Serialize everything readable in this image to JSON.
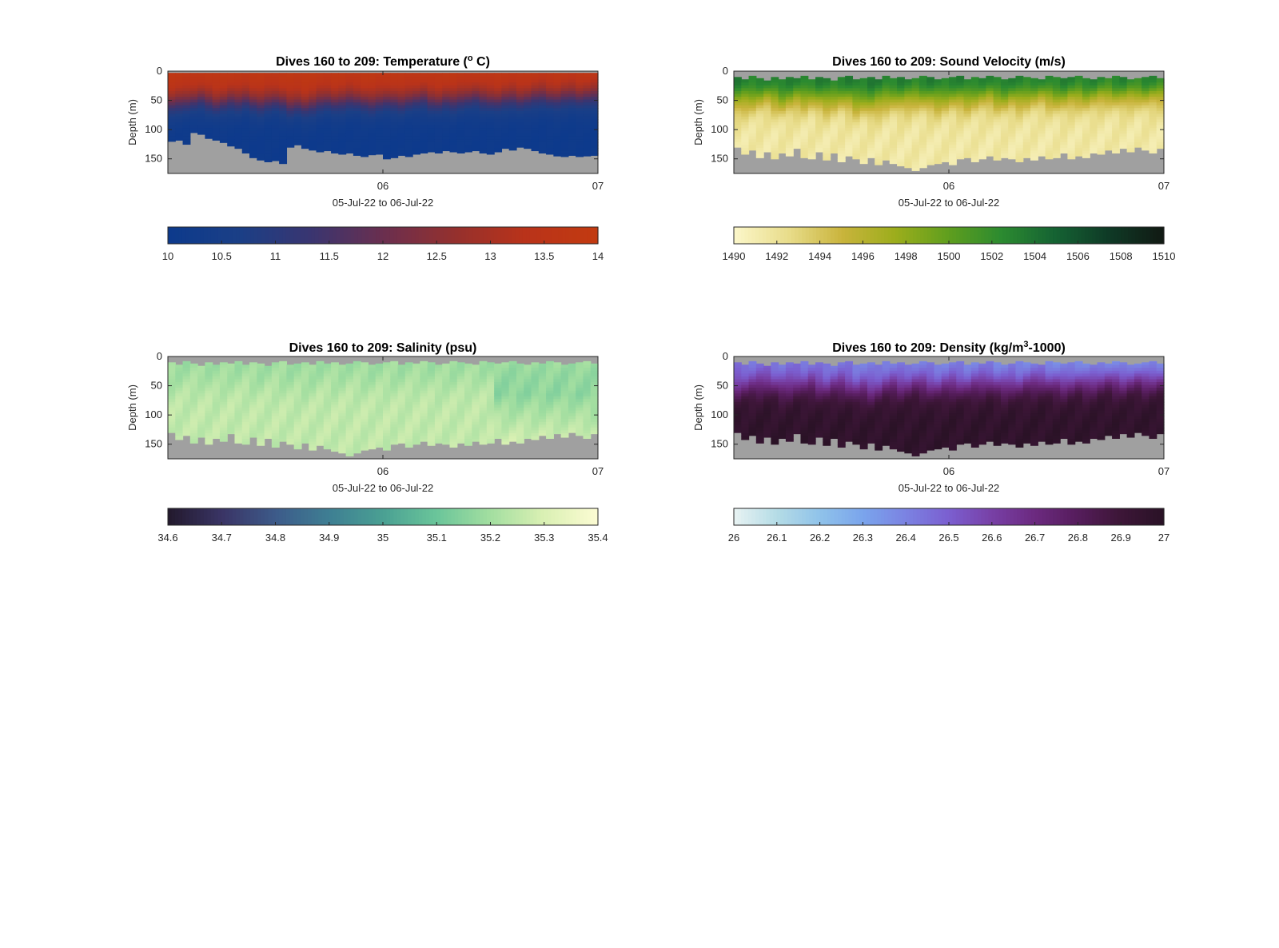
{
  "chart_data": [
    {
      "type": "heatmap",
      "title": "Dives 160 to 209: Temperature (",
      "title_sup": "o",
      "title_tail": " C)",
      "ylabel": "Depth (m)",
      "xlabel": "05-Jul-22 to 06-Jul-22",
      "x_ticks": [
        "06",
        "07"
      ],
      "x_tick_hours": [
        12,
        36
      ],
      "x_range_hours": [
        -12,
        36
      ],
      "y_ticks": [
        0,
        50,
        100,
        150
      ],
      "ylim": [
        0,
        175
      ],
      "y_reversed": true,
      "colorbar": {
        "ticks": [
          "10",
          "10.5",
          "11",
          "11.5",
          "12",
          "12.5",
          "13",
          "13.5",
          "14"
        ],
        "min": 10,
        "max": 14
      },
      "colormap": [
        "#0d3a8c",
        "#1b3f86",
        "#3a3570",
        "#6a2f4f",
        "#94302e",
        "#b9331a",
        "#c23a10"
      ],
      "nodata_color": "#a0a0a0",
      "field": "temperature",
      "profile_bottom_depth_m": [
        120,
        118,
        125,
        105,
        108,
        115,
        118,
        122,
        128,
        132,
        140,
        148,
        152,
        155,
        153,
        158,
        130,
        126,
        132,
        135,
        138,
        136,
        140,
        142,
        140,
        144,
        146,
        143,
        142,
        150,
        148,
        144,
        146,
        142,
        140,
        138,
        140,
        136,
        138,
        140,
        138,
        136,
        140,
        142,
        138,
        132,
        135,
        130,
        132,
        136,
        140,
        142,
        145,
        146,
        144,
        146,
        145,
        144
      ],
      "profile_top_depth_m": [
        3,
        3,
        3,
        3,
        3,
        3,
        3,
        3,
        3,
        3,
        3,
        3,
        3,
        3,
        3,
        3,
        3,
        3,
        3,
        3,
        3,
        3,
        3,
        3,
        3,
        3,
        3,
        3,
        3,
        3,
        3,
        3,
        3,
        3,
        3,
        3,
        3,
        3,
        3,
        3,
        3,
        3,
        3,
        3,
        3,
        3,
        3,
        3,
        3,
        3,
        3,
        3,
        3,
        3,
        3,
        3,
        3,
        3
      ],
      "thermocline_depth_m": [
        55,
        52,
        50,
        48,
        45,
        50,
        55,
        52,
        48,
        50,
        46,
        52,
        55,
        50,
        48,
        52,
        58,
        55,
        60,
        56,
        50,
        48,
        52,
        50,
        46,
        48,
        52,
        54,
        50,
        48,
        50,
        52,
        48,
        46,
        44,
        50,
        52,
        48,
        50,
        46,
        44,
        42,
        46,
        48,
        50,
        46,
        44,
        48,
        46,
        42,
        40,
        44,
        46,
        42,
        40,
        44,
        42,
        40
      ]
    },
    {
      "type": "heatmap",
      "title": "Dives 160 to 209: Sound Velocity (m/s)",
      "ylabel": "Depth (m)",
      "xlabel": "05-Jul-22 to 06-Jul-22",
      "x_ticks": [
        "06",
        "07"
      ],
      "x_tick_hours": [
        12,
        36
      ],
      "x_range_hours": [
        -12,
        36
      ],
      "y_ticks": [
        0,
        50,
        100,
        150
      ],
      "ylim": [
        0,
        175
      ],
      "y_reversed": true,
      "colorbar": {
        "ticks": [
          "1490",
          "1492",
          "1494",
          "1496",
          "1498",
          "1500",
          "1502",
          "1504",
          "1506",
          "1508",
          "1510"
        ],
        "min": 1490,
        "max": 1510
      },
      "colormap": [
        "#fbf6c8",
        "#e8dc8a",
        "#c9b43c",
        "#9cad1c",
        "#5f9e1e",
        "#2b8a30",
        "#156233",
        "#0f3a26",
        "#111a14"
      ],
      "nodata_color": "#a0a0a0",
      "field": "sound_velocity",
      "profile_bottom_depth_m": [
        130,
        142,
        135,
        148,
        138,
        150,
        140,
        145,
        132,
        148,
        150,
        138,
        152,
        140,
        155,
        145,
        150,
        158,
        148,
        160,
        152,
        158,
        162,
        165,
        170,
        165,
        160,
        158,
        155,
        160,
        150,
        148,
        155,
        150,
        145,
        152,
        148,
        150,
        155,
        148,
        152,
        145,
        150,
        148,
        140,
        150,
        145,
        148,
        140,
        142,
        135,
        140,
        132,
        138,
        130,
        135,
        140,
        132
      ],
      "profile_top_depth_m": [
        10,
        14,
        8,
        12,
        16,
        10,
        14,
        10,
        12,
        8,
        14,
        10,
        12,
        16,
        10,
        8,
        14,
        12,
        10,
        14,
        8,
        12,
        10,
        14,
        12,
        8,
        10,
        14,
        12,
        10,
        8,
        14,
        10,
        12,
        8,
        10,
        14,
        12,
        8,
        10,
        12,
        14,
        8,
        10,
        12,
        10,
        8,
        12,
        14,
        10,
        12,
        8,
        10,
        14,
        12,
        10,
        8,
        12
      ],
      "thermocline_depth_m": [
        55,
        52,
        50,
        48,
        45,
        50,
        55,
        52,
        48,
        50,
        46,
        52,
        55,
        50,
        48,
        52,
        58,
        55,
        60,
        56,
        50,
        48,
        52,
        50,
        46,
        48,
        52,
        54,
        50,
        48,
        50,
        52,
        48,
        46,
        44,
        50,
        52,
        48,
        50,
        46,
        44,
        42,
        46,
        48,
        50,
        46,
        44,
        48,
        46,
        42,
        40,
        44,
        46,
        42,
        40,
        44,
        42,
        40
      ]
    },
    {
      "type": "heatmap",
      "title": "Dives 160 to 209: Salinity (psu)",
      "ylabel": "Depth (m)",
      "xlabel": "05-Jul-22 to 06-Jul-22",
      "x_ticks": [
        "06",
        "07"
      ],
      "x_tick_hours": [
        12,
        36
      ],
      "x_range_hours": [
        -12,
        36
      ],
      "y_ticks": [
        0,
        50,
        100,
        150
      ],
      "ylim": [
        0,
        175
      ],
      "y_reversed": true,
      "colorbar": {
        "ticks": [
          "34.6",
          "34.7",
          "34.8",
          "34.9",
          "35",
          "35.1",
          "35.2",
          "35.3",
          "35.4"
        ],
        "min": 34.6,
        "max": 35.4
      },
      "colormap": [
        "#231a2e",
        "#3a3566",
        "#3d5b8a",
        "#3e7f93",
        "#4aa093",
        "#6ac59a",
        "#a2deA0",
        "#d9f0b3",
        "#fbfbd2"
      ],
      "nodata_color": "#a0a0a0",
      "field": "salinity",
      "profile_bottom_depth_m": [
        130,
        142,
        135,
        148,
        138,
        150,
        140,
        145,
        132,
        148,
        150,
        138,
        152,
        140,
        155,
        145,
        150,
        158,
        148,
        160,
        152,
        158,
        162,
        165,
        170,
        165,
        160,
        158,
        155,
        160,
        150,
        148,
        155,
        150,
        145,
        152,
        148,
        150,
        155,
        148,
        152,
        145,
        150,
        148,
        140,
        150,
        145,
        148,
        140,
        142,
        135,
        140,
        132,
        138,
        130,
        135,
        140,
        132
      ],
      "profile_top_depth_m": [
        10,
        14,
        8,
        12,
        16,
        10,
        14,
        10,
        12,
        8,
        14,
        10,
        12,
        16,
        10,
        8,
        14,
        12,
        10,
        14,
        8,
        12,
        10,
        14,
        12,
        8,
        10,
        14,
        12,
        10,
        8,
        14,
        10,
        12,
        8,
        10,
        14,
        12,
        8,
        10,
        12,
        14,
        8,
        10,
        12,
        10,
        8,
        12,
        14,
        10,
        12,
        8,
        10,
        14,
        12,
        10,
        8,
        12
      ],
      "thermocline_depth_m": [
        55,
        52,
        50,
        48,
        45,
        50,
        55,
        52,
        48,
        50,
        46,
        52,
        55,
        50,
        48,
        52,
        58,
        55,
        60,
        56,
        50,
        48,
        52,
        50,
        46,
        48,
        52,
        54,
        50,
        48,
        50,
        52,
        48,
        46,
        44,
        50,
        52,
        48,
        50,
        46,
        44,
        42,
        46,
        48,
        50,
        46,
        44,
        48,
        46,
        42,
        40,
        44,
        46,
        42,
        40,
        44,
        42,
        40
      ]
    },
    {
      "type": "heatmap",
      "title": "Dives 160 to 209: Density (kg/m",
      "title_sup": "3",
      "title_tail": "-1000)",
      "ylabel": "Depth (m)",
      "xlabel": "05-Jul-22 to 06-Jul-22",
      "x_ticks": [
        "06",
        "07"
      ],
      "x_tick_hours": [
        12,
        36
      ],
      "x_range_hours": [
        -12,
        36
      ],
      "y_ticks": [
        0,
        50,
        100,
        150
      ],
      "ylim": [
        0,
        175
      ],
      "y_reversed": true,
      "colorbar": {
        "ticks": [
          "26",
          "26.1",
          "26.2",
          "26.3",
          "26.4",
          "26.5",
          "26.6",
          "26.7",
          "26.8",
          "26.9",
          "27"
        ],
        "min": 26,
        "max": 27
      },
      "colormap": [
        "#e6f2f2",
        "#b3dbe6",
        "#8fc2ea",
        "#7aa4ec",
        "#7b82e2",
        "#7b5fd0",
        "#7840a6",
        "#6c2a80",
        "#561d5c",
        "#3d1638",
        "#2a1226"
      ],
      "nodata_color": "#a0a0a0",
      "field": "density",
      "profile_bottom_depth_m": [
        130,
        142,
        135,
        148,
        138,
        150,
        140,
        145,
        132,
        148,
        150,
        138,
        152,
        140,
        155,
        145,
        150,
        158,
        148,
        160,
        152,
        158,
        162,
        165,
        170,
        165,
        160,
        158,
        155,
        160,
        150,
        148,
        155,
        150,
        145,
        152,
        148,
        150,
        155,
        148,
        152,
        145,
        150,
        148,
        140,
        150,
        145,
        148,
        140,
        142,
        135,
        140,
        132,
        138,
        130,
        135,
        140,
        132
      ],
      "profile_top_depth_m": [
        10,
        14,
        8,
        12,
        16,
        10,
        14,
        10,
        12,
        8,
        14,
        10,
        12,
        16,
        10,
        8,
        14,
        12,
        10,
        14,
        8,
        12,
        10,
        14,
        12,
        8,
        10,
        14,
        12,
        10,
        8,
        14,
        10,
        12,
        8,
        10,
        14,
        12,
        8,
        10,
        12,
        14,
        8,
        10,
        12,
        10,
        8,
        12,
        14,
        10,
        12,
        8,
        10,
        14,
        12,
        10,
        8,
        12
      ],
      "thermocline_depth_m": [
        55,
        52,
        50,
        48,
        45,
        50,
        55,
        52,
        48,
        50,
        46,
        52,
        55,
        50,
        48,
        52,
        58,
        55,
        60,
        56,
        50,
        48,
        52,
        50,
        46,
        48,
        52,
        54,
        50,
        48,
        50,
        52,
        48,
        46,
        44,
        50,
        52,
        48,
        50,
        46,
        44,
        42,
        46,
        48,
        50,
        46,
        44,
        48,
        46,
        42,
        40,
        44,
        46,
        42,
        40,
        44,
        42,
        40
      ]
    }
  ]
}
